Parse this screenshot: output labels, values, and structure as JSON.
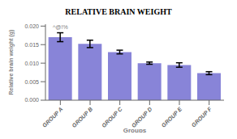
{
  "chart_data": {
    "type": "bar",
    "title": "RELATIVE BRAIN WEIGHT",
    "xlabel": "Groups",
    "ylabel": "Relative brain weight (g)",
    "categories": [
      "GROUP A",
      "GROUP B",
      "GROUP C",
      "GROUP D",
      "GROUP E",
      "GROUP F"
    ],
    "values": [
      0.017,
      0.0152,
      0.013,
      0.01,
      0.0095,
      0.0073
    ],
    "errors": [
      0.0012,
      0.001,
      0.0005,
      0.0003,
      0.0006,
      0.0004
    ],
    "color": "#8884d8",
    "ylim": [
      0.0,
      0.0205
    ],
    "yticks": [
      {
        "value": 0.0,
        "label": "0.000"
      },
      {
        "value": 0.005,
        "label": "0.005"
      },
      {
        "value": 0.01,
        "label": "0.010"
      },
      {
        "value": 0.015,
        "label": "0.015"
      },
      {
        "value": 0.02,
        "label": "0.020"
      }
    ],
    "annotation": "^@!%"
  }
}
